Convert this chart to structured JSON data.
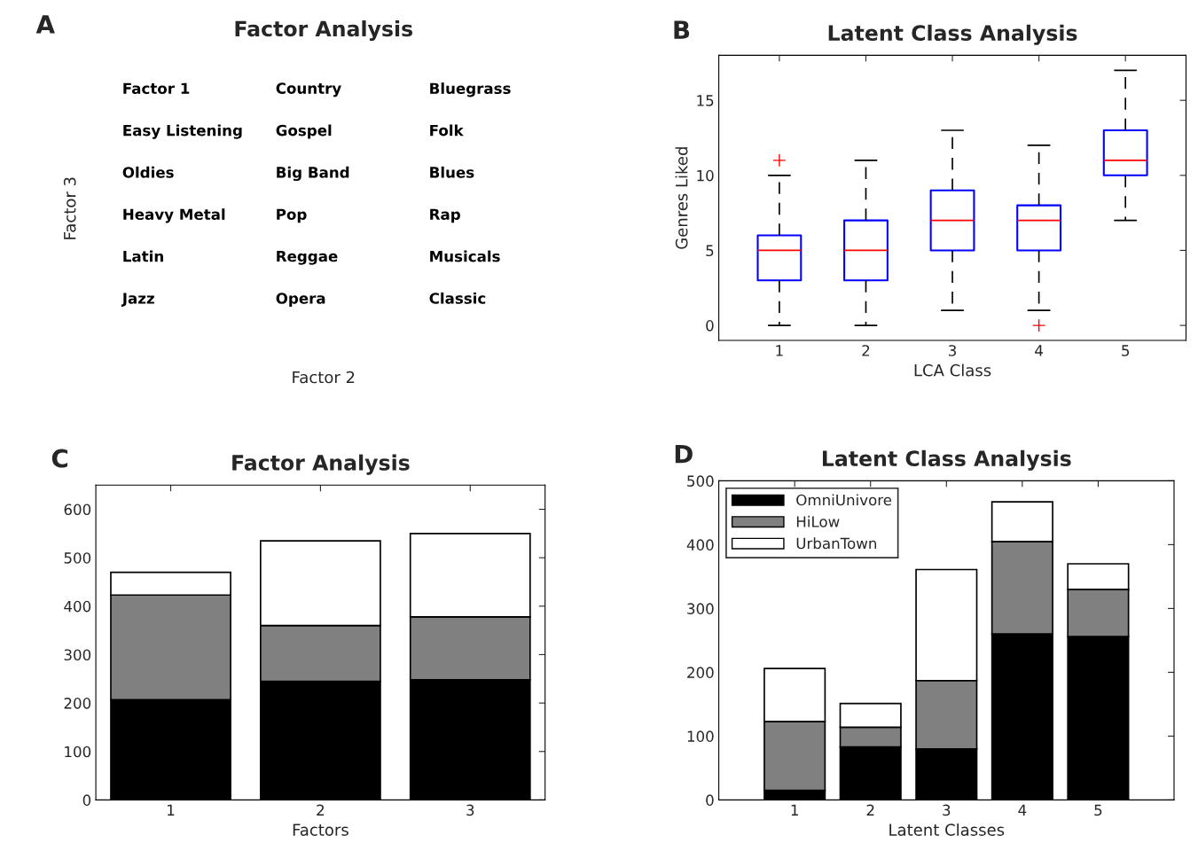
{
  "chart_data": [
    {
      "type": "other",
      "title": "Factor Analysis",
      "xlabel": "Factor 2",
      "ylabel": "Factor 3",
      "annotations": [
        "A",
        "Factor 1",
        "Country",
        "Bluegrass",
        "Easy Listening",
        "Gospel",
        "Folk",
        "Oldies",
        "Big Band",
        "Blues",
        "Heavy Metal",
        "Pop",
        "Rap",
        "Latin",
        "Reggae",
        "Musicals",
        "Jazz",
        "Opera",
        "Classic"
      ]
    },
    {
      "type": "box",
      "title": "Latent Class Analysis",
      "xlabel": "LCA Class",
      "ylabel": "Genres Liked",
      "annotations": [
        "B"
      ],
      "categories": [
        "1",
        "2",
        "3",
        "4",
        "5"
      ],
      "ylim": [
        -1,
        18
      ],
      "yticks": [
        0,
        5,
        10,
        15
      ],
      "series": [
        {
          "color": "#0000ff",
          "boxes": [
            {
              "low": 0,
              "q1": 3,
              "median": 5,
              "q3": 6,
              "high": 10,
              "outliers": [
                11
              ]
            },
            {
              "low": 0,
              "q1": 3,
              "median": 5,
              "q3": 7,
              "high": 11
            },
            {
              "low": 1,
              "q1": 5,
              "median": 7,
              "q3": 9,
              "high": 13
            },
            {
              "low": 1,
              "q1": 5,
              "median": 7,
              "q3": 8,
              "high": 12,
              "outliers": [
                0
              ]
            },
            {
              "low": 7,
              "q1": 10,
              "median": 11,
              "q3": 13,
              "high": 17
            }
          ]
        }
      ]
    },
    {
      "type": "bar",
      "stacked": true,
      "title": "Factor Analysis",
      "xlabel": "Factors",
      "annotations": [
        "C"
      ],
      "categories": [
        "1",
        "2",
        "3"
      ],
      "ylim": [
        0,
        650
      ],
      "yticks": [
        0,
        100,
        200,
        300,
        400,
        500,
        600
      ],
      "series": [
        {
          "color": "#000000",
          "values": [
            207,
            245,
            248
          ]
        },
        {
          "color": "#808080",
          "values": [
            216,
            115,
            130
          ]
        },
        {
          "color": "#ffffff",
          "values": [
            47,
            175,
            172
          ]
        }
      ]
    },
    {
      "type": "bar",
      "stacked": true,
      "title": "Latent Class Analysis",
      "xlabel": "Latent Classes",
      "annotations": [
        "D"
      ],
      "legend": "top left",
      "categories": [
        "1",
        "2",
        "3",
        "4",
        "5"
      ],
      "ylim": [
        0,
        500
      ],
      "yticks": [
        0,
        100,
        200,
        300,
        400,
        500
      ],
      "series": [
        {
          "name": "OmniUnivore",
          "color": "#000000",
          "values": [
            15,
            83,
            80,
            260,
            256
          ]
        },
        {
          "name": "HiLow",
          "color": "#808080",
          "values": [
            108,
            31,
            107,
            145,
            74
          ]
        },
        {
          "name": "UrbanTown",
          "color": "#ffffff",
          "values": [
            83,
            37,
            174,
            62,
            40
          ]
        }
      ]
    }
  ]
}
